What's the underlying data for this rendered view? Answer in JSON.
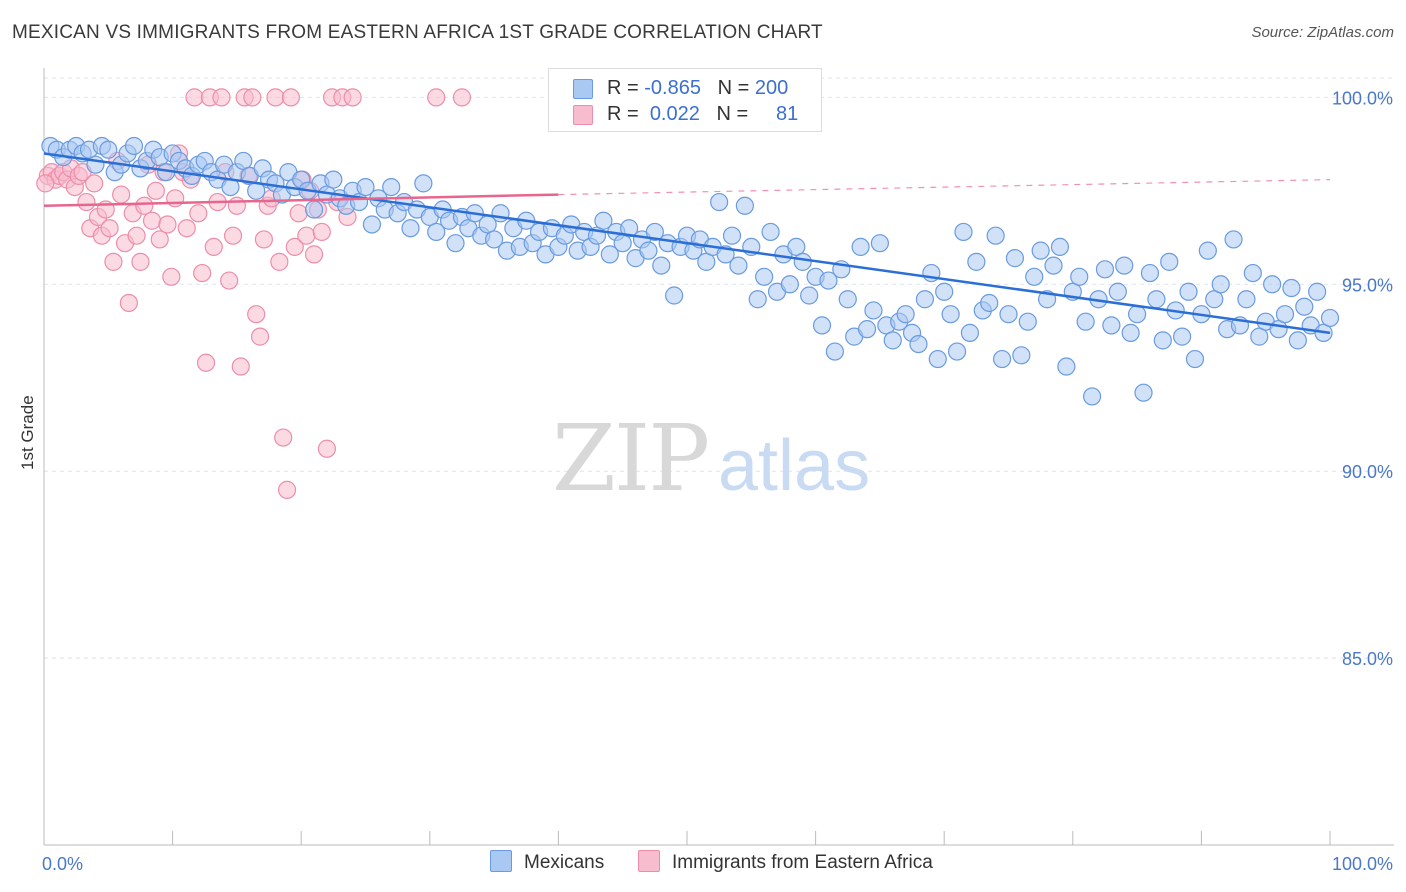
{
  "title": "MEXICAN VS IMMIGRANTS FROM EASTERN AFRICA 1ST GRADE CORRELATION CHART",
  "source": "Source: ZipAtlas.com",
  "watermark": {
    "zip": "ZIP",
    "atlas": "atlas"
  },
  "legend_box": {
    "rows": [
      {
        "r_label": "R = ",
        "r_value": "-0.865",
        "n_label": "N = ",
        "n_value": "200",
        "color": "#a9c8f2"
      },
      {
        "r_label": "R = ",
        "r_value": "0.022",
        "n_label": "N = ",
        "n_value": "81",
        "color": "#f5b9cb"
      }
    ]
  },
  "colors": {
    "blue_fill": "#a9c8f2",
    "blue_edge": "#6a9be0",
    "blue_line": "#2b6fd6",
    "pink_fill": "#f7bccd",
    "pink_edge": "#ec8eaa",
    "pink_line": "#e8658e",
    "grid": "#dde3ee",
    "tick_text": "#4a78c9"
  },
  "chart_data": {
    "type": "scatter",
    "title": "MEXICAN VS IMMIGRANTS FROM EASTERN AFRICA 1ST GRADE CORRELATION CHART",
    "xlabel": "",
    "ylabel": "1st Grade",
    "xlim": [
      0,
      100
    ],
    "ylim": [
      80.0,
      101.0
    ],
    "x_tick_labels": [
      "0.0%",
      "100.0%"
    ],
    "y_ticks": [
      85.0,
      90.0,
      95.0,
      100.0
    ],
    "y_tick_labels": [
      "85.0%",
      "90.0%",
      "95.0%",
      "100.0%"
    ],
    "grid": true,
    "legend_position": "bottom-center",
    "series": [
      {
        "name": "Mexicans",
        "R": -0.865,
        "N": 200,
        "trend": {
          "x": [
            0,
            100
          ],
          "y": [
            98.5,
            93.7
          ]
        },
        "points": [
          [
            0.5,
            98.7
          ],
          [
            1.0,
            98.6
          ],
          [
            1.5,
            98.4
          ],
          [
            2.0,
            98.6
          ],
          [
            2.5,
            98.7
          ],
          [
            3.0,
            98.5
          ],
          [
            3.5,
            98.6
          ],
          [
            4.0,
            98.2
          ],
          [
            4.5,
            98.7
          ],
          [
            5.0,
            98.6
          ],
          [
            5.5,
            98.0
          ],
          [
            6.0,
            98.2
          ],
          [
            6.5,
            98.5
          ],
          [
            7.0,
            98.7
          ],
          [
            7.5,
            98.1
          ],
          [
            8.0,
            98.3
          ],
          [
            8.5,
            98.6
          ],
          [
            9.0,
            98.4
          ],
          [
            9.5,
            98.0
          ],
          [
            10.0,
            98.5
          ],
          [
            10.5,
            98.3
          ],
          [
            11.0,
            98.1
          ],
          [
            11.5,
            97.9
          ],
          [
            12.0,
            98.2
          ],
          [
            12.5,
            98.3
          ],
          [
            13.0,
            98.0
          ],
          [
            13.5,
            97.8
          ],
          [
            14.0,
            98.2
          ],
          [
            14.5,
            97.6
          ],
          [
            15.0,
            98.0
          ],
          [
            15.5,
            98.3
          ],
          [
            16.0,
            97.9
          ],
          [
            16.5,
            97.5
          ],
          [
            17.0,
            98.1
          ],
          [
            17.5,
            97.8
          ],
          [
            18.0,
            97.7
          ],
          [
            18.5,
            97.4
          ],
          [
            19.0,
            98.0
          ],
          [
            19.5,
            97.6
          ],
          [
            20.0,
            97.8
          ],
          [
            20.5,
            97.5
          ],
          [
            21.0,
            97.0
          ],
          [
            21.5,
            97.7
          ],
          [
            22.0,
            97.4
          ],
          [
            22.5,
            97.8
          ],
          [
            23.0,
            97.3
          ],
          [
            23.5,
            97.1
          ],
          [
            24.0,
            97.5
          ],
          [
            24.5,
            97.2
          ],
          [
            25.0,
            97.6
          ],
          [
            25.5,
            96.6
          ],
          [
            26.0,
            97.3
          ],
          [
            26.5,
            97.0
          ],
          [
            27.0,
            97.6
          ],
          [
            27.5,
            96.9
          ],
          [
            28.0,
            97.2
          ],
          [
            28.5,
            96.5
          ],
          [
            29.0,
            97.0
          ],
          [
            29.5,
            97.7
          ],
          [
            30.0,
            96.8
          ],
          [
            30.5,
            96.4
          ],
          [
            31.0,
            97.0
          ],
          [
            31.5,
            96.7
          ],
          [
            32.0,
            96.1
          ],
          [
            32.5,
            96.8
          ],
          [
            33.0,
            96.5
          ],
          [
            33.5,
            96.9
          ],
          [
            34.0,
            96.3
          ],
          [
            34.5,
            96.6
          ],
          [
            35.0,
            96.2
          ],
          [
            35.5,
            96.9
          ],
          [
            36.0,
            95.9
          ],
          [
            36.5,
            96.5
          ],
          [
            37.0,
            96.0
          ],
          [
            37.5,
            96.7
          ],
          [
            38.0,
            96.1
          ],
          [
            38.5,
            96.4
          ],
          [
            39.0,
            95.8
          ],
          [
            39.5,
            96.5
          ],
          [
            40.0,
            96.0
          ],
          [
            40.5,
            96.3
          ],
          [
            41.0,
            96.6
          ],
          [
            41.5,
            95.9
          ],
          [
            42.0,
            96.4
          ],
          [
            42.5,
            96.0
          ],
          [
            43.0,
            96.3
          ],
          [
            43.5,
            96.7
          ],
          [
            44.0,
            95.8
          ],
          [
            44.5,
            96.4
          ],
          [
            45.0,
            96.1
          ],
          [
            45.5,
            96.5
          ],
          [
            46.0,
            95.7
          ],
          [
            46.5,
            96.2
          ],
          [
            47.0,
            95.9
          ],
          [
            47.5,
            96.4
          ],
          [
            48.0,
            95.5
          ],
          [
            48.5,
            96.1
          ],
          [
            49.0,
            94.7
          ],
          [
            49.5,
            96.0
          ],
          [
            50.0,
            96.3
          ],
          [
            50.5,
            95.9
          ],
          [
            51.0,
            96.2
          ],
          [
            51.5,
            95.6
          ],
          [
            52.0,
            96.0
          ],
          [
            52.5,
            97.2
          ],
          [
            53.0,
            95.8
          ],
          [
            53.5,
            96.3
          ],
          [
            54.0,
            95.5
          ],
          [
            54.5,
            97.1
          ],
          [
            55.0,
            96.0
          ],
          [
            55.5,
            94.6
          ],
          [
            56.0,
            95.2
          ],
          [
            56.5,
            96.4
          ],
          [
            57.0,
            94.8
          ],
          [
            57.5,
            95.8
          ],
          [
            58.0,
            95.0
          ],
          [
            58.5,
            96.0
          ],
          [
            59.0,
            95.6
          ],
          [
            59.5,
            94.7
          ],
          [
            60.0,
            95.2
          ],
          [
            60.5,
            93.9
          ],
          [
            61.0,
            95.1
          ],
          [
            61.5,
            93.2
          ],
          [
            62.0,
            95.4
          ],
          [
            62.5,
            94.6
          ],
          [
            63.0,
            93.6
          ],
          [
            63.5,
            96.0
          ],
          [
            64.0,
            93.8
          ],
          [
            64.5,
            94.3
          ],
          [
            65.0,
            96.1
          ],
          [
            65.5,
            93.9
          ],
          [
            66.0,
            93.5
          ],
          [
            66.5,
            94.0
          ],
          [
            67.0,
            94.2
          ],
          [
            67.5,
            93.7
          ],
          [
            68.0,
            93.4
          ],
          [
            68.5,
            94.6
          ],
          [
            69.0,
            95.3
          ],
          [
            69.5,
            93.0
          ],
          [
            70.0,
            94.8
          ],
          [
            70.5,
            94.2
          ],
          [
            71.0,
            93.2
          ],
          [
            71.5,
            96.4
          ],
          [
            72.0,
            93.7
          ],
          [
            72.5,
            95.6
          ],
          [
            73.0,
            94.3
          ],
          [
            73.5,
            94.5
          ],
          [
            74.0,
            96.3
          ],
          [
            74.5,
            93.0
          ],
          [
            75.0,
            94.2
          ],
          [
            75.5,
            95.7
          ],
          [
            76.0,
            93.1
          ],
          [
            76.5,
            94.0
          ],
          [
            77.0,
            95.2
          ],
          [
            77.5,
            95.9
          ],
          [
            78.0,
            94.6
          ],
          [
            78.5,
            95.5
          ],
          [
            79.0,
            96.0
          ],
          [
            79.5,
            92.8
          ],
          [
            80.0,
            94.8
          ],
          [
            80.5,
            95.2
          ],
          [
            81.0,
            94.0
          ],
          [
            81.5,
            92.0
          ],
          [
            82.0,
            94.6
          ],
          [
            82.5,
            95.4
          ],
          [
            83.0,
            93.9
          ],
          [
            83.5,
            94.8
          ],
          [
            84.0,
            95.5
          ],
          [
            84.5,
            93.7
          ],
          [
            85.0,
            94.2
          ],
          [
            85.5,
            92.1
          ],
          [
            86.0,
            95.3
          ],
          [
            86.5,
            94.6
          ],
          [
            87.0,
            93.5
          ],
          [
            87.5,
            95.6
          ],
          [
            88.0,
            94.3
          ],
          [
            88.5,
            93.6
          ],
          [
            89.0,
            94.8
          ],
          [
            89.5,
            93.0
          ],
          [
            90.0,
            94.2
          ],
          [
            90.5,
            95.9
          ],
          [
            91.0,
            94.6
          ],
          [
            91.5,
            95.0
          ],
          [
            92.0,
            93.8
          ],
          [
            92.5,
            96.2
          ],
          [
            93.0,
            93.9
          ],
          [
            93.5,
            94.6
          ],
          [
            94.0,
            95.3
          ],
          [
            94.5,
            93.6
          ],
          [
            95.0,
            94.0
          ],
          [
            95.5,
            95.0
          ],
          [
            96.0,
            93.8
          ],
          [
            96.5,
            94.2
          ],
          [
            97.0,
            94.9
          ],
          [
            97.5,
            93.5
          ],
          [
            98.0,
            94.4
          ],
          [
            98.5,
            93.9
          ],
          [
            99.0,
            94.8
          ],
          [
            99.5,
            93.7
          ],
          [
            100.0,
            94.1
          ]
        ]
      },
      {
        "name": "Immigrants from Eastern Africa",
        "R": 0.022,
        "N": 81,
        "trend": {
          "x": [
            0,
            40
          ],
          "y": [
            97.1,
            97.4
          ]
        },
        "trend_extension": {
          "x": [
            40,
            100
          ],
          "y": [
            97.4,
            97.8
          ]
        },
        "points": [
          [
            0.3,
            97.9
          ],
          [
            0.6,
            98.0
          ],
          [
            0.9,
            97.8
          ],
          [
            1.2,
            97.9
          ],
          [
            1.5,
            98.0
          ],
          [
            1.8,
            97.8
          ],
          [
            2.1,
            98.1
          ],
          [
            2.4,
            97.6
          ],
          [
            2.7,
            97.9
          ],
          [
            3.0,
            98.0
          ],
          [
            3.3,
            97.2
          ],
          [
            3.6,
            96.5
          ],
          [
            3.9,
            97.7
          ],
          [
            4.2,
            96.8
          ],
          [
            4.5,
            96.3
          ],
          [
            4.8,
            97.0
          ],
          [
            5.1,
            96.5
          ],
          [
            5.4,
            95.6
          ],
          [
            5.7,
            98.3
          ],
          [
            6.0,
            97.4
          ],
          [
            6.3,
            96.1
          ],
          [
            6.6,
            94.5
          ],
          [
            6.9,
            96.9
          ],
          [
            7.2,
            96.3
          ],
          [
            7.5,
            95.6
          ],
          [
            7.8,
            97.1
          ],
          [
            8.1,
            98.2
          ],
          [
            8.4,
            96.7
          ],
          [
            8.7,
            97.5
          ],
          [
            9.0,
            96.2
          ],
          [
            9.3,
            98.0
          ],
          [
            9.6,
            96.6
          ],
          [
            9.9,
            95.2
          ],
          [
            10.2,
            97.3
          ],
          [
            10.5,
            98.5
          ],
          [
            10.8,
            98.0
          ],
          [
            11.1,
            96.5
          ],
          [
            11.4,
            97.8
          ],
          [
            11.7,
            100.0
          ],
          [
            12.0,
            96.9
          ],
          [
            12.3,
            95.3
          ],
          [
            12.6,
            92.9
          ],
          [
            12.9,
            100.0
          ],
          [
            13.2,
            96.0
          ],
          [
            13.5,
            97.2
          ],
          [
            13.8,
            100.0
          ],
          [
            14.1,
            98.0
          ],
          [
            14.4,
            95.1
          ],
          [
            14.7,
            96.3
          ],
          [
            15.0,
            97.1
          ],
          [
            15.3,
            92.8
          ],
          [
            15.6,
            100.0
          ],
          [
            15.9,
            97.9
          ],
          [
            16.2,
            100.0
          ],
          [
            16.5,
            94.2
          ],
          [
            16.8,
            93.6
          ],
          [
            17.1,
            96.2
          ],
          [
            17.4,
            97.1
          ],
          [
            17.7,
            97.3
          ],
          [
            18.0,
            100.0
          ],
          [
            18.3,
            95.6
          ],
          [
            18.6,
            90.9
          ],
          [
            18.9,
            89.5
          ],
          [
            19.2,
            100.0
          ],
          [
            19.5,
            96.0
          ],
          [
            19.8,
            96.9
          ],
          [
            20.1,
            97.8
          ],
          [
            20.4,
            96.3
          ],
          [
            20.7,
            97.5
          ],
          [
            21.0,
            95.8
          ],
          [
            21.3,
            97.0
          ],
          [
            21.6,
            96.4
          ],
          [
            22.0,
            90.6
          ],
          [
            22.4,
            100.0
          ],
          [
            22.8,
            97.2
          ],
          [
            23.2,
            100.0
          ],
          [
            23.6,
            96.8
          ],
          [
            24.0,
            100.0
          ],
          [
            30.5,
            100.0
          ],
          [
            32.5,
            100.0
          ],
          [
            0.1,
            97.7
          ]
        ]
      }
    ]
  },
  "bottom_legend": [
    "Mexicans",
    "Immigrants from Eastern Africa"
  ]
}
